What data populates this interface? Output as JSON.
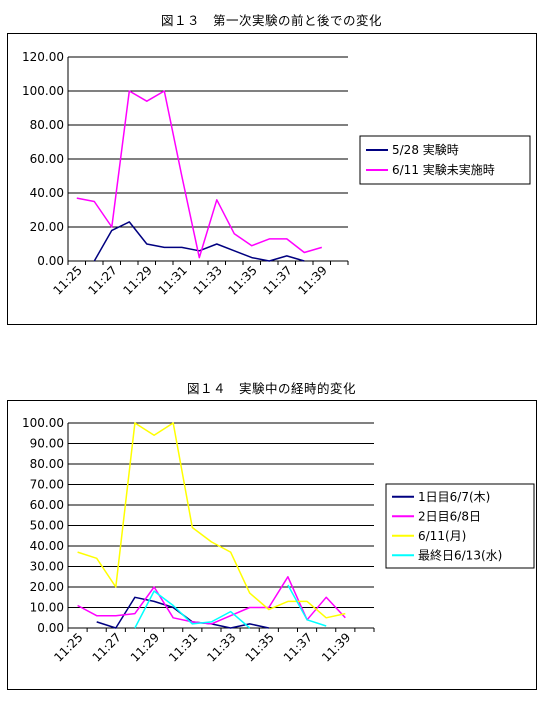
{
  "chart_data": [
    {
      "type": "line",
      "title": "図１３　第一次実験の前と後での変化",
      "xlabel": "",
      "ylabel": "",
      "ylim": [
        0,
        120
      ],
      "yticks": [
        "0.00",
        "20.00",
        "40.00",
        "60.00",
        "80.00",
        "100.00",
        "120.00"
      ],
      "x": [
        "11:25",
        "11:26",
        "11:27",
        "11:28",
        "11:29",
        "11:30",
        "11:31",
        "11:32",
        "11:33",
        "11:34",
        "11:35",
        "11:36",
        "11:37",
        "11:38",
        "11:39",
        "11:40"
      ],
      "xtick_labels": [
        "11:25",
        "11:27",
        "11:29",
        "11:31",
        "11:33",
        "11:35",
        "11:37",
        "11:39"
      ],
      "grid": true,
      "legend_position": "right",
      "series": [
        {
          "name": "5/28 実験時",
          "color": "#000080",
          "values": [
            null,
            0,
            18,
            23,
            10,
            8,
            8,
            6,
            10,
            6,
            2,
            0,
            3,
            0,
            null,
            null
          ]
        },
        {
          "name": "6/11 実験未実施時",
          "color": "#FF00FF",
          "values": [
            37,
            35,
            20,
            100,
            94,
            100,
            50,
            2,
            36,
            16,
            9,
            13,
            13,
            5,
            8,
            null
          ]
        }
      ]
    },
    {
      "type": "line",
      "title": "図１４　実験中の経時的変化",
      "xlabel": "",
      "ylabel": "",
      "ylim": [
        0,
        100
      ],
      "yticks": [
        "0.00",
        "10.00",
        "20.00",
        "30.00",
        "40.00",
        "50.00",
        "60.00",
        "70.00",
        "80.00",
        "90.00",
        "100.00"
      ],
      "x": [
        "11:25",
        "11:26",
        "11:27",
        "11:28",
        "11:29",
        "11:30",
        "11:31",
        "11:32",
        "11:33",
        "11:34",
        "11:35",
        "11:36",
        "11:37",
        "11:38",
        "11:39",
        "11:40"
      ],
      "xtick_labels": [
        "11:25",
        "11:27",
        "11:29",
        "11:31",
        "11:33",
        "11:35",
        "11:37",
        "11:39"
      ],
      "grid": true,
      "legend_position": "right",
      "series": [
        {
          "name": "1日目6/7(木)",
          "color": "#000080",
          "values": [
            null,
            3,
            0,
            15,
            13,
            10,
            3,
            2,
            0,
            2,
            0,
            null,
            null,
            null,
            null,
            null
          ]
        },
        {
          "name": "2日目6/8日",
          "color": "#FF00FF",
          "values": [
            11,
            6,
            6,
            7,
            20,
            5,
            3,
            2,
            6,
            10,
            10,
            25,
            4,
            15,
            5,
            null
          ]
        },
        {
          "name": "6/11(月)",
          "color": "#FFFF00",
          "values": [
            37,
            34,
            20,
            100,
            94,
            100,
            49,
            42,
            37,
            17,
            9,
            13,
            13,
            5,
            7,
            null
          ]
        },
        {
          "name": "最終日6/13(水)",
          "color": "#00FFFF",
          "values": [
            null,
            null,
            null,
            0,
            18,
            11,
            2,
            3,
            8,
            0,
            null,
            21,
            4,
            1,
            null,
            null
          ]
        }
      ]
    }
  ]
}
